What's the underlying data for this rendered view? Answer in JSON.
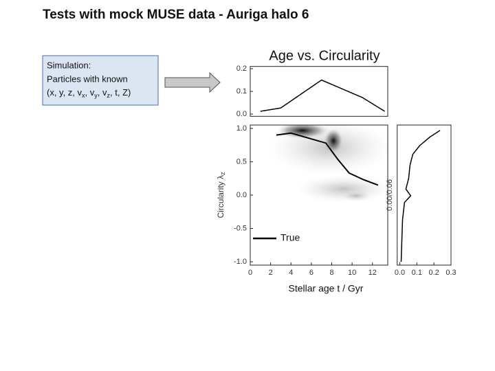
{
  "slide": {
    "title": "Tests with mock MUSE data - Auriga halo 6",
    "box": {
      "line1": "Simulation:",
      "line2": "Particles with known",
      "line3": [
        {
          "text": "(x, y, z, v"
        },
        {
          "sub": "x"
        },
        {
          "text": ", v"
        },
        {
          "sub": "y"
        },
        {
          "text": ", v"
        },
        {
          "sub": "z"
        },
        {
          "text": ", t, Z)"
        }
      ]
    }
  },
  "chart_data": [
    {
      "type": "line",
      "title": "Age vs. Circularity",
      "x": [
        1.0,
        3.0,
        7.0,
        11.0,
        13.2
      ],
      "values": [
        0.012,
        0.027,
        0.15,
        0.073,
        0.012
      ],
      "color": "#000000",
      "xlim": [
        0,
        13.5
      ],
      "ylim": [
        -0.01,
        0.21
      ],
      "yticks": [
        {
          "value": 0,
          "label": "0.0"
        },
        0.1,
        0.2
      ]
    },
    {
      "type": "line",
      "x_label": "Stellar age t / Gyr",
      "y_label": "Circularity λ",
      "y_label_sub": "z",
      "series": [
        {
          "name": "True",
          "color": "#000000",
          "x": [
            2.56,
            3.98,
            7.42,
            8.57,
            9.71,
            11.13,
            12.55
          ],
          "values": [
            0.9,
            0.93,
            0.78,
            0.54,
            0.33,
            0.23,
            0.15
          ]
        }
      ],
      "xlim": [
        0,
        13.5
      ],
      "ylim": [
        -1.05,
        1.05
      ],
      "xticks": [
        0,
        2,
        4,
        6,
        8,
        10,
        12
      ],
      "yticks": [
        {
          "value": -1,
          "label": "-1.0"
        },
        {
          "value": -0.5,
          "label": "-0.5"
        },
        {
          "value": 0,
          "label": "0.0"
        },
        {
          "value": 0.5,
          "label": "0.5"
        },
        {
          "value": 1,
          "label": "1.0"
        }
      ]
    },
    {
      "type": "line",
      "y_label": "0.00/0.06",
      "y": [
        0.97,
        0.87,
        0.74,
        0.61,
        0.45,
        0.25,
        0.09,
        -0.01,
        -0.11,
        -0.37,
        -0.68,
        -1.0
      ],
      "values": [
        0.236,
        0.176,
        0.116,
        0.076,
        0.06,
        0.052,
        0.036,
        0.064,
        0.028,
        0.016,
        0.012,
        0.008
      ],
      "color": "#000000",
      "xlim": [
        -0.015,
        0.3
      ],
      "ylim": [
        -1.05,
        1.05
      ],
      "xticks": [
        {
          "value": 0,
          "label": "0.0"
        },
        0.1,
        0.2,
        0.3
      ]
    }
  ]
}
